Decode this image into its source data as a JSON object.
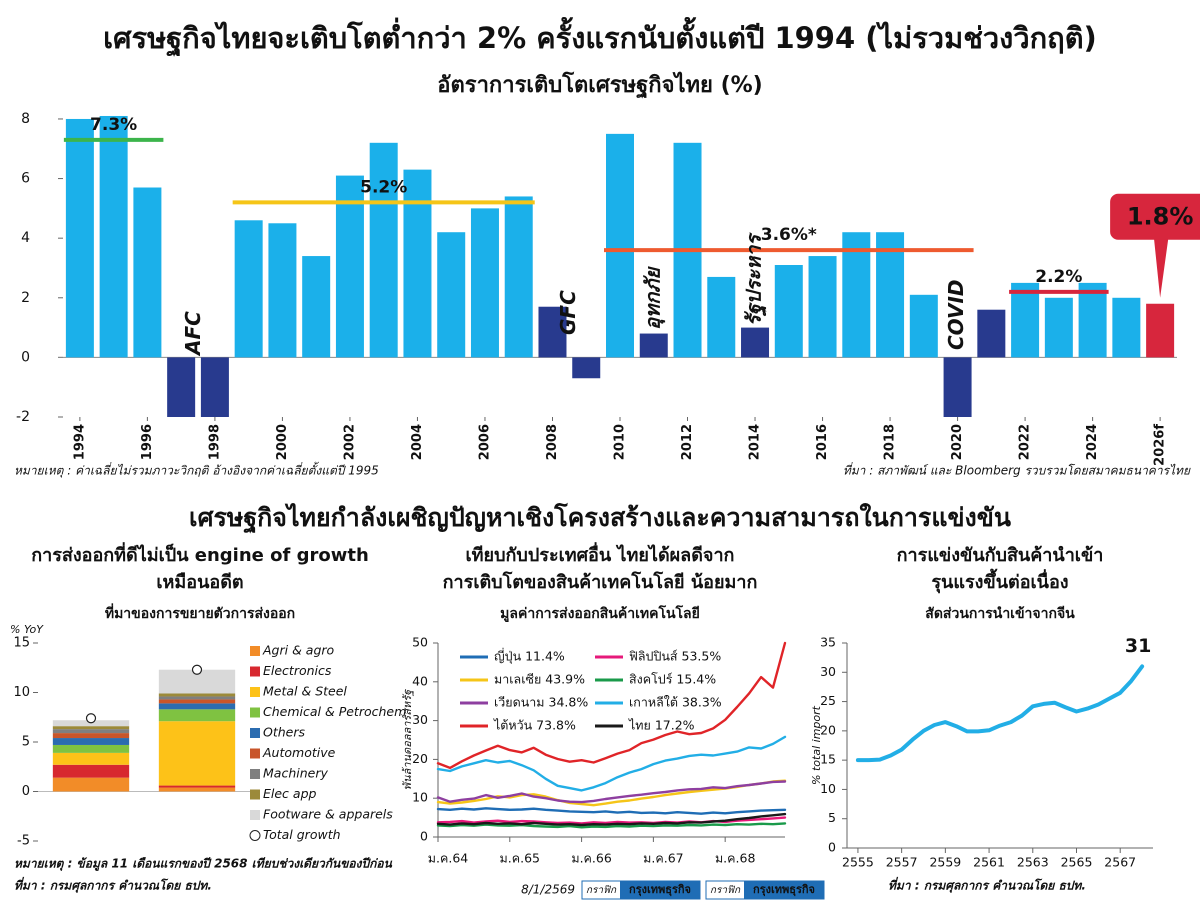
{
  "section_title": "เศรษฐกิจไทยกำลังเผชิญปัญหาเชิงโครงสร้างและความสามารถในการแข่งขัน",
  "footer": {
    "date": "8/1/2569",
    "credits": [
      [
        "กราฟิก",
        "กรุงเทพธุรกิจ"
      ],
      [
        "กราฟิก",
        "กรุงเทพธุรกิจ"
      ]
    ]
  },
  "chart_data": [
    {
      "type": "bar",
      "title": "เศรษฐกิจไทยจะเติบโตต่ำกว่า 2% ครั้งแรกนับตั้งแต่ปี 1994 (ไม่รวมช่วงวิกฤติ)",
      "subtitle": "อัตราการเติบโตเศรษฐกิจไทย (%)",
      "x": [
        1994,
        1995,
        1996,
        1997,
        1998,
        1999,
        2000,
        2001,
        2002,
        2003,
        2004,
        2005,
        2006,
        2007,
        2008,
        2009,
        2010,
        2011,
        2012,
        2013,
        2014,
        2015,
        2016,
        2017,
        2018,
        2019,
        2020,
        2021,
        2022,
        2023,
        2024,
        2025,
        2026
      ],
      "values": [
        8.0,
        8.1,
        5.7,
        -2.0,
        -2.0,
        4.6,
        4.5,
        3.4,
        6.1,
        7.2,
        6.3,
        4.2,
        5.0,
        5.4,
        1.7,
        -0.7,
        7.5,
        0.8,
        7.2,
        2.7,
        1.0,
        3.1,
        3.4,
        4.2,
        4.2,
        2.1,
        -2.0,
        1.6,
        2.5,
        2.0,
        2.5,
        2.0,
        1.8
      ],
      "colors": [
        "#1bb0ea",
        "#1bb0ea",
        "#1bb0ea",
        "#283a8e",
        "#283a8e",
        "#1bb0ea",
        "#1bb0ea",
        "#1bb0ea",
        "#1bb0ea",
        "#1bb0ea",
        "#1bb0ea",
        "#1bb0ea",
        "#1bb0ea",
        "#1bb0ea",
        "#283a8e",
        "#283a8e",
        "#1bb0ea",
        "#283a8e",
        "#1bb0ea",
        "#1bb0ea",
        "#283a8e",
        "#1bb0ea",
        "#1bb0ea",
        "#1bb0ea",
        "#1bb0ea",
        "#1bb0ea",
        "#283a8e",
        "#283a8e",
        "#1bb0ea",
        "#1bb0ea",
        "#1bb0ea",
        "#1bb0ea",
        "#d7263d"
      ],
      "value_labels": [
        null,
        null,
        null,
        null,
        null,
        null,
        null,
        null,
        null,
        null,
        null,
        null,
        null,
        null,
        null,
        null,
        null,
        null,
        null,
        null,
        null,
        null,
        null,
        null,
        null,
        null,
        null,
        null,
        null,
        null,
        null,
        null,
        "1.8%"
      ],
      "xlim": [
        1993.5,
        2026.5
      ],
      "xticks": [
        1994,
        1996,
        1998,
        2000,
        2002,
        2004,
        2006,
        2008,
        2010,
        2012,
        2014,
        2016,
        2018,
        2020,
        2022,
        2024,
        {
          "value": 2026,
          "label": "2026f"
        }
      ],
      "ylim": [
        -2,
        8.2
      ],
      "yticks": [
        -2,
        0,
        2,
        4,
        6,
        8
      ],
      "averages": [
        {
          "label": "7.3%",
          "value": 7.3,
          "x": [
            1994,
            1996
          ],
          "color": "#3cb44b"
        },
        {
          "label": "5.2%",
          "value": 5.2,
          "x": [
            1999,
            2007
          ],
          "color": "#f5c518"
        },
        {
          "label": "3.6%*",
          "value": 3.6,
          "x": [
            2010,
            2020
          ],
          "color": "#ee5a2f"
        },
        {
          "label": "2.2%",
          "value": 2.2,
          "x": [
            2022,
            2024
          ],
          "color": "#d7263d"
        }
      ],
      "annotations": [
        "AFC",
        "GFC",
        "อุทกภัย",
        "รัฐประหาร",
        "COVID"
      ],
      "note": "หมายเหตุ : ค่าเฉลี่ยไม่รวมภาวะวิกฤติ อ้างอิงจากค่าเฉลี่ยตั้งแต่ปี 1995",
      "source": "ที่มา : สภาพัฒน์ และ Bloomberg รวบรวมโดยสมาคมธนาคารไทย"
    },
    {
      "type": "stacked_bar",
      "title": [
        "การส่งออกที่ดีไม่เป็น engine of growth",
        "เหมือนอดีต"
      ],
      "subtitle": "ที่มาของการขยายตัวการส่งออก",
      "ylabel": "% YoY",
      "categories": [
        null,
        null
      ],
      "series": [
        {
          "name": "Agri & agro",
          "color": "#f28c28",
          "values": [
            1.4,
            0.4
          ]
        },
        {
          "name": "Electronics",
          "color": "#d7282f",
          "values": [
            1.3,
            0.2
          ]
        },
        {
          "name": "Metal & Steel",
          "color": "#fdc218",
          "values": [
            1.2,
            6.5
          ]
        },
        {
          "name": "Chemical & Petrochem",
          "color": "#7fc241",
          "values": [
            0.8,
            1.2
          ]
        },
        {
          "name": "Others",
          "color": "#2b6cb0",
          "values": [
            0.7,
            0.6
          ]
        },
        {
          "name": "Automotive",
          "color": "#c8552a",
          "values": [
            0.5,
            0.4
          ]
        },
        {
          "name": "Machinery",
          "color": "#7f7f7f",
          "values": [
            0.4,
            0.3
          ]
        },
        {
          "name": "Elec app",
          "color": "#9c8a3a",
          "values": [
            0.3,
            0.3
          ]
        },
        {
          "name": "Footware & apparels",
          "color": "#d9d9d9",
          "values": [
            0.6,
            2.4
          ]
        }
      ],
      "totals": {
        "name": "Total growth",
        "values": [
          7.4,
          12.3
        ]
      },
      "ylim": [
        -5,
        15
      ],
      "yticks": [
        -5,
        0,
        5,
        10,
        15
      ],
      "note": "หมายเหตุ : ข้อมูล 11 เดือนแรกของปี 2568 เทียบช่วงเดียวกันของปีก่อน",
      "source": "ที่มา : กรมศุลกากร คำนวณโดย ธปท."
    },
    {
      "type": "line",
      "title": [
        "เทียบกับประเทศอื่น ไทยได้ผลดีจาก",
        "การเติบโตของสินค้าเทคโนโลยี น้อยมาก"
      ],
      "subtitle": "มูลค่าการส่งออกสินค้าเทคโนโลยี",
      "ylabel": "พันล้านดอลลาร์สหรัฐ",
      "categories": [
        "ม.ค.64",
        null,
        null,
        null,
        null,
        null,
        "ม.ค.65",
        null,
        null,
        null,
        null,
        null,
        "ม.ค.66",
        null,
        null,
        null,
        null,
        null,
        "ม.ค.67",
        null,
        null,
        null,
        null,
        null,
        "ม.ค.68",
        null,
        null,
        null,
        null,
        null
      ],
      "series": [
        {
          "name": "ญี่ปุ่น 11.4%",
          "color": "#1f6db5",
          "values": [
            7.2,
            7.0,
            7.3,
            7.1,
            7.4,
            7.2,
            7.0,
            7.1,
            7.3,
            7.0,
            6.8,
            6.6,
            6.5,
            6.4,
            6.6,
            6.3,
            6.5,
            6.2,
            6.3,
            6.1,
            6.4,
            6.2,
            6.0,
            6.3,
            6.1,
            6.4,
            6.6,
            6.8,
            6.9,
            7.0
          ]
        },
        {
          "name": "ฟิลิปปินส์ 53.5%",
          "color": "#e6197a",
          "values": [
            3.8,
            3.9,
            4.1,
            3.7,
            4.0,
            4.2,
            3.9,
            4.1,
            4.0,
            3.8,
            3.6,
            3.7,
            3.5,
            3.8,
            3.6,
            3.9,
            3.7,
            3.8,
            3.6,
            3.9,
            3.7,
            4.0,
            3.8,
            4.1,
            3.9,
            4.2,
            4.4,
            4.6,
            4.8,
            5.0
          ]
        },
        {
          "name": "มาเลเซีย 43.9%",
          "color": "#f5c518",
          "values": [
            9.0,
            8.6,
            8.9,
            9.3,
            9.8,
            10.5,
            10.2,
            10.8,
            11.0,
            10.4,
            9.5,
            8.8,
            8.5,
            8.2,
            8.6,
            9.1,
            9.4,
            9.9,
            10.3,
            10.8,
            11.2,
            11.6,
            11.9,
            12.2,
            12.5,
            12.9,
            13.4,
            13.8,
            14.3,
            14.5
          ]
        },
        {
          "name": "สิงคโปร์ 15.4%",
          "color": "#1a9a4a",
          "values": [
            3.0,
            2.8,
            3.1,
            2.9,
            3.2,
            3.0,
            2.9,
            3.1,
            2.8,
            2.7,
            2.6,
            2.8,
            2.5,
            2.7,
            2.6,
            2.8,
            2.7,
            2.9,
            2.8,
            3.0,
            2.9,
            3.1,
            3.0,
            3.2,
            3.1,
            3.3,
            3.2,
            3.4,
            3.3,
            3.5
          ]
        },
        {
          "name": "เวียดนาม 34.8%",
          "color": "#8e3fa0",
          "values": [
            10.2,
            9.1,
            9.6,
            9.9,
            10.8,
            10.1,
            10.6,
            11.2,
            10.4,
            10.0,
            9.4,
            9.1,
            9.0,
            9.3,
            9.8,
            10.2,
            10.6,
            10.9,
            11.3,
            11.6,
            12.0,
            12.3,
            12.4,
            12.8,
            12.6,
            13.1,
            13.4,
            13.8,
            14.2,
            14.3
          ]
        },
        {
          "name": "เกาหลีใต้ 38.3%",
          "color": "#22aee6",
          "values": [
            17.5,
            17.0,
            18.2,
            19.0,
            19.8,
            19.2,
            19.6,
            18.5,
            17.2,
            15.0,
            13.2,
            12.6,
            12.0,
            12.8,
            13.9,
            15.4,
            16.6,
            17.5,
            18.8,
            19.7,
            20.2,
            20.9,
            21.2,
            21.0,
            21.5,
            22.0,
            23.1,
            22.8,
            24.0,
            25.8
          ]
        },
        {
          "name": "ไต้หวัน 73.8%",
          "color": "#e02428",
          "values": [
            19.0,
            17.8,
            19.5,
            21.0,
            22.3,
            23.5,
            22.4,
            21.8,
            23.0,
            21.2,
            20.1,
            19.4,
            19.8,
            19.2,
            20.3,
            21.5,
            22.4,
            24.2,
            25.1,
            26.3,
            27.2,
            26.5,
            26.8,
            28.0,
            30.2,
            33.5,
            37.0,
            41.2,
            38.5,
            50.0
          ]
        },
        {
          "name": "ไทย 17.2%",
          "color": "#1a1a1a",
          "values": [
            3.4,
            3.2,
            3.5,
            3.3,
            3.6,
            3.4,
            3.5,
            3.3,
            3.6,
            3.4,
            3.2,
            3.3,
            3.1,
            3.3,
            3.2,
            3.4,
            3.3,
            3.5,
            3.4,
            3.6,
            3.5,
            3.8,
            3.7,
            4.0,
            4.2,
            4.6,
            4.9,
            5.3,
            5.6,
            5.9
          ]
        }
      ],
      "ylim": [
        0,
        50
      ],
      "yticks": [
        0,
        10,
        20,
        30,
        40,
        50
      ]
    },
    {
      "type": "line",
      "title": [
        "การแข่งขันกับสินค้านำเข้า",
        "รุนแรงขึ้นต่อเนื่อง"
      ],
      "subtitle": "สัดส่วนการนำเข้าจากจีน",
      "ylabel": "% total import",
      "x": [
        2555,
        2555.5,
        2556,
        2556.5,
        2557,
        2557.5,
        2558,
        2558.5,
        2559,
        2559.5,
        2560,
        2560.5,
        2561,
        2561.5,
        2562,
        2562.5,
        2563,
        2563.5,
        2564,
        2564.5,
        2565,
        2565.5,
        2566,
        2566.5,
        2567,
        2567.5,
        2568
      ],
      "values": [
        15.0,
        15.0,
        15.1,
        15.8,
        16.8,
        18.5,
        20.0,
        21.0,
        21.5,
        20.8,
        19.9,
        19.9,
        20.1,
        20.9,
        21.5,
        22.6,
        24.2,
        24.6,
        24.8,
        24.0,
        23.3,
        23.8,
        24.5,
        25.5,
        26.5,
        28.5,
        31
      ],
      "color": "#22aee6",
      "end_label": true,
      "xlim": [
        2554.5,
        2568.5
      ],
      "xticks": [
        2555,
        2557,
        2559,
        2561,
        2563,
        2565,
        2567
      ],
      "ylim": [
        0,
        35
      ],
      "yticks": [
        0,
        5,
        10,
        15,
        20,
        25,
        30,
        35
      ],
      "source": "ที่มา : กรมศุลกากร คำนวณโดย ธปท."
    }
  ]
}
